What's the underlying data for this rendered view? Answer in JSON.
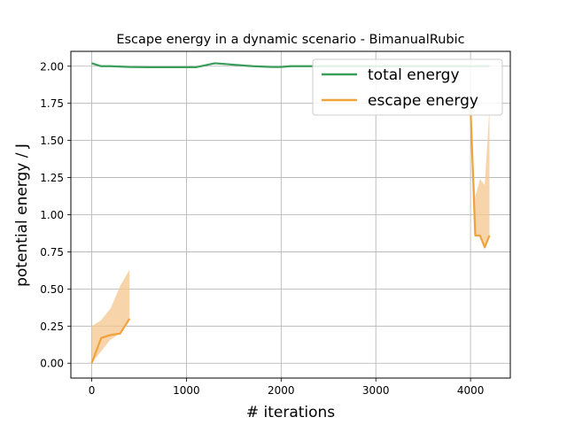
{
  "chart_data": {
    "type": "line",
    "title": "Escape energy in a dynamic scenario - BimanualRubic",
    "xlabel": "# iterations",
    "ylabel": "potential energy / J",
    "xlim": [
      -220,
      4420
    ],
    "ylim": [
      -0.1,
      2.1
    ],
    "xticks": [
      0,
      1000,
      2000,
      3000,
      4000
    ],
    "yticks": [
      0.0,
      0.25,
      0.5,
      0.75,
      1.0,
      1.25,
      1.5,
      1.75,
      2.0
    ],
    "xtick_labels": [
      "0",
      "1000",
      "2000",
      "3000",
      "4000"
    ],
    "ytick_labels": [
      "0.00",
      "0.25",
      "0.50",
      "0.75",
      "1.00",
      "1.25",
      "1.50",
      "1.75",
      "2.00"
    ],
    "grid": true,
    "legend_position": "top-right",
    "series": [
      {
        "name": "total energy",
        "color": "#3a9e5a",
        "x": [
          0,
          100,
          200,
          400,
          600,
          800,
          1000,
          1100,
          1300,
          1500,
          1700,
          1900,
          2000,
          2100,
          2300,
          2500,
          2700,
          3000,
          3500,
          4000,
          4100,
          4200
        ],
        "y": [
          2.02,
          2.0,
          2.0,
          1.995,
          1.993,
          1.993,
          1.993,
          1.993,
          2.02,
          2.01,
          2.0,
          1.995,
          1.995,
          2.0,
          2.0,
          2.0,
          2.0,
          2.0,
          2.0,
          2.0,
          2.0,
          2.0
        ]
      },
      {
        "name": "escape energy",
        "color": "#f0a23c",
        "band_color": "#f6c68e",
        "segments": [
          {
            "x": [
              0,
              100,
              200,
              300,
              400
            ],
            "y": [
              0.0,
              0.17,
              0.19,
              0.2,
              0.3
            ],
            "lower": [
              0.0,
              0.08,
              0.16,
              0.2,
              0.3
            ],
            "upper": [
              0.25,
              0.29,
              0.37,
              0.52,
              0.63
            ]
          },
          {
            "x": [
              4000,
              4050,
              4100,
              4150,
              4200
            ],
            "y": [
              1.72,
              0.86,
              0.86,
              0.78,
              0.86
            ],
            "lower": [
              1.72,
              0.86,
              0.86,
              0.78,
              0.86
            ],
            "upper": [
              1.72,
              1.12,
              1.24,
              1.2,
              1.72
            ]
          }
        ]
      }
    ]
  }
}
